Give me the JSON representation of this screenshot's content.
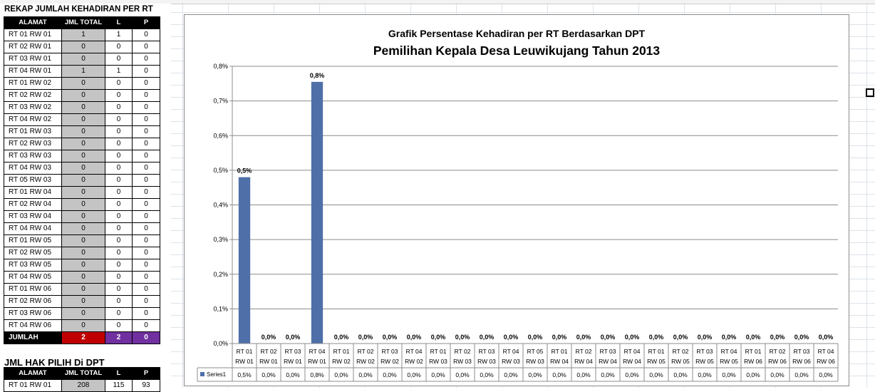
{
  "rekap": {
    "title": "REKAP JUMLAH KEHADIRAN PER RT",
    "headers": [
      "ALAMAT",
      "JML TOTAL",
      "L",
      "P"
    ],
    "rows": [
      [
        "RT 01 RW 01",
        "1",
        "1",
        "0"
      ],
      [
        "RT 02 RW 01",
        "0",
        "0",
        "0"
      ],
      [
        "RT 03 RW 01",
        "0",
        "0",
        "0"
      ],
      [
        "RT 04 RW 01",
        "1",
        "1",
        "0"
      ],
      [
        "RT 01 RW 02",
        "0",
        "0",
        "0"
      ],
      [
        "RT 02 RW 02",
        "0",
        "0",
        "0"
      ],
      [
        "RT 03 RW 02",
        "0",
        "0",
        "0"
      ],
      [
        "RT 04 RW 02",
        "0",
        "0",
        "0"
      ],
      [
        "RT 01 RW 03",
        "0",
        "0",
        "0"
      ],
      [
        "RT 02 RW 03",
        "0",
        "0",
        "0"
      ],
      [
        "RT 03 RW 03",
        "0",
        "0",
        "0"
      ],
      [
        "RT 04 RW 03",
        "0",
        "0",
        "0"
      ],
      [
        "RT 05 RW 03",
        "0",
        "0",
        "0"
      ],
      [
        "RT 01 RW 04",
        "0",
        "0",
        "0"
      ],
      [
        "RT 02 RW 04",
        "0",
        "0",
        "0"
      ],
      [
        "RT 03 RW 04",
        "0",
        "0",
        "0"
      ],
      [
        "RT 04 RW 04",
        "0",
        "0",
        "0"
      ],
      [
        "RT 01 RW 05",
        "0",
        "0",
        "0"
      ],
      [
        "RT 02 RW 05",
        "0",
        "0",
        "0"
      ],
      [
        "RT 03 RW 05",
        "0",
        "0",
        "0"
      ],
      [
        "RT 04 RW 05",
        "0",
        "0",
        "0"
      ],
      [
        "RT 01 RW 06",
        "0",
        "0",
        "0"
      ],
      [
        "RT 02 RW 06",
        "0",
        "0",
        "0"
      ],
      [
        "RT 03 RW 06",
        "0",
        "0",
        "0"
      ],
      [
        "RT 04 RW 06",
        "0",
        "0",
        "0"
      ]
    ],
    "total": {
      "label": "JUMLAH",
      "jml_total": "2",
      "l": "2",
      "p": "0"
    }
  },
  "dpt": {
    "title": "JML HAK PILIH Di DPT",
    "headers": [
      "ALAMAT",
      "JML TOTAL",
      "L",
      "P"
    ],
    "rows": [
      [
        "RT 01 RW 01",
        "208",
        "115",
        "93"
      ]
    ]
  },
  "colors": {
    "bar": "#4f6fa8",
    "total_red": "#c00000",
    "total_purple": "#7030a0",
    "header_black": "#000000",
    "total_cell_grey": "#c4c4c4"
  },
  "chart_data": {
    "type": "bar",
    "title": "Grafik Persentase Kehadiran per RT Berdasarkan DPT",
    "subtitle": "Pemilihan Kepala Desa Leuwikujang Tahun 2013",
    "categories": [
      [
        "RT 01",
        "RW 01"
      ],
      [
        "RT 02",
        "RW 01"
      ],
      [
        "RT 03",
        "RW 01"
      ],
      [
        "RT 04",
        "RW 01"
      ],
      [
        "RT 01",
        "RW 02"
      ],
      [
        "RT 02",
        "RW 02"
      ],
      [
        "RT 03",
        "RW 02"
      ],
      [
        "RT 04",
        "RW 02"
      ],
      [
        "RT 01",
        "RW 03"
      ],
      [
        "RT 02",
        "RW 03"
      ],
      [
        "RT 03",
        "RW 03"
      ],
      [
        "RT 04",
        "RW 03"
      ],
      [
        "RT 05",
        "RW 03"
      ],
      [
        "RT 01",
        "RW 04"
      ],
      [
        "RT 02",
        "RW 04"
      ],
      [
        "RT 03",
        "RW 04"
      ],
      [
        "RT 04",
        "RW 04"
      ],
      [
        "RT 01",
        "RW 05"
      ],
      [
        "RT 02",
        "RW 05"
      ],
      [
        "RT 03",
        "RW 05"
      ],
      [
        "RT 04",
        "RW 05"
      ],
      [
        "RT 01",
        "RW 06"
      ],
      [
        "RT 02",
        "RW 06"
      ],
      [
        "RT 03",
        "RW 06"
      ],
      [
        "RT 04",
        "RW 06"
      ]
    ],
    "series": [
      {
        "name": "Series1",
        "values": [
          0.48,
          0,
          0,
          0.755,
          0,
          0,
          0,
          0,
          0,
          0,
          0,
          0,
          0,
          0,
          0,
          0,
          0,
          0,
          0,
          0,
          0,
          0,
          0,
          0,
          0
        ],
        "labels": [
          "0,5%",
          "0,0%",
          "0,0%",
          "0,8%",
          "0,0%",
          "0,0%",
          "0,0%",
          "0,0%",
          "0,0%",
          "0,0%",
          "0,0%",
          "0,0%",
          "0,0%",
          "0,0%",
          "0,0%",
          "0,0%",
          "0,0%",
          "0,0%",
          "0,0%",
          "0,0%",
          "0,0%",
          "0,0%",
          "0,0%",
          "0,0%",
          "0,0%"
        ]
      }
    ],
    "yticks": [
      "0,0%",
      "0,1%",
      "0,2%",
      "0,3%",
      "0,4%",
      "0,5%",
      "0,6%",
      "0,7%",
      "0,8%"
    ],
    "ylim": [
      0,
      0.8
    ],
    "grid": true,
    "data_table": true
  }
}
